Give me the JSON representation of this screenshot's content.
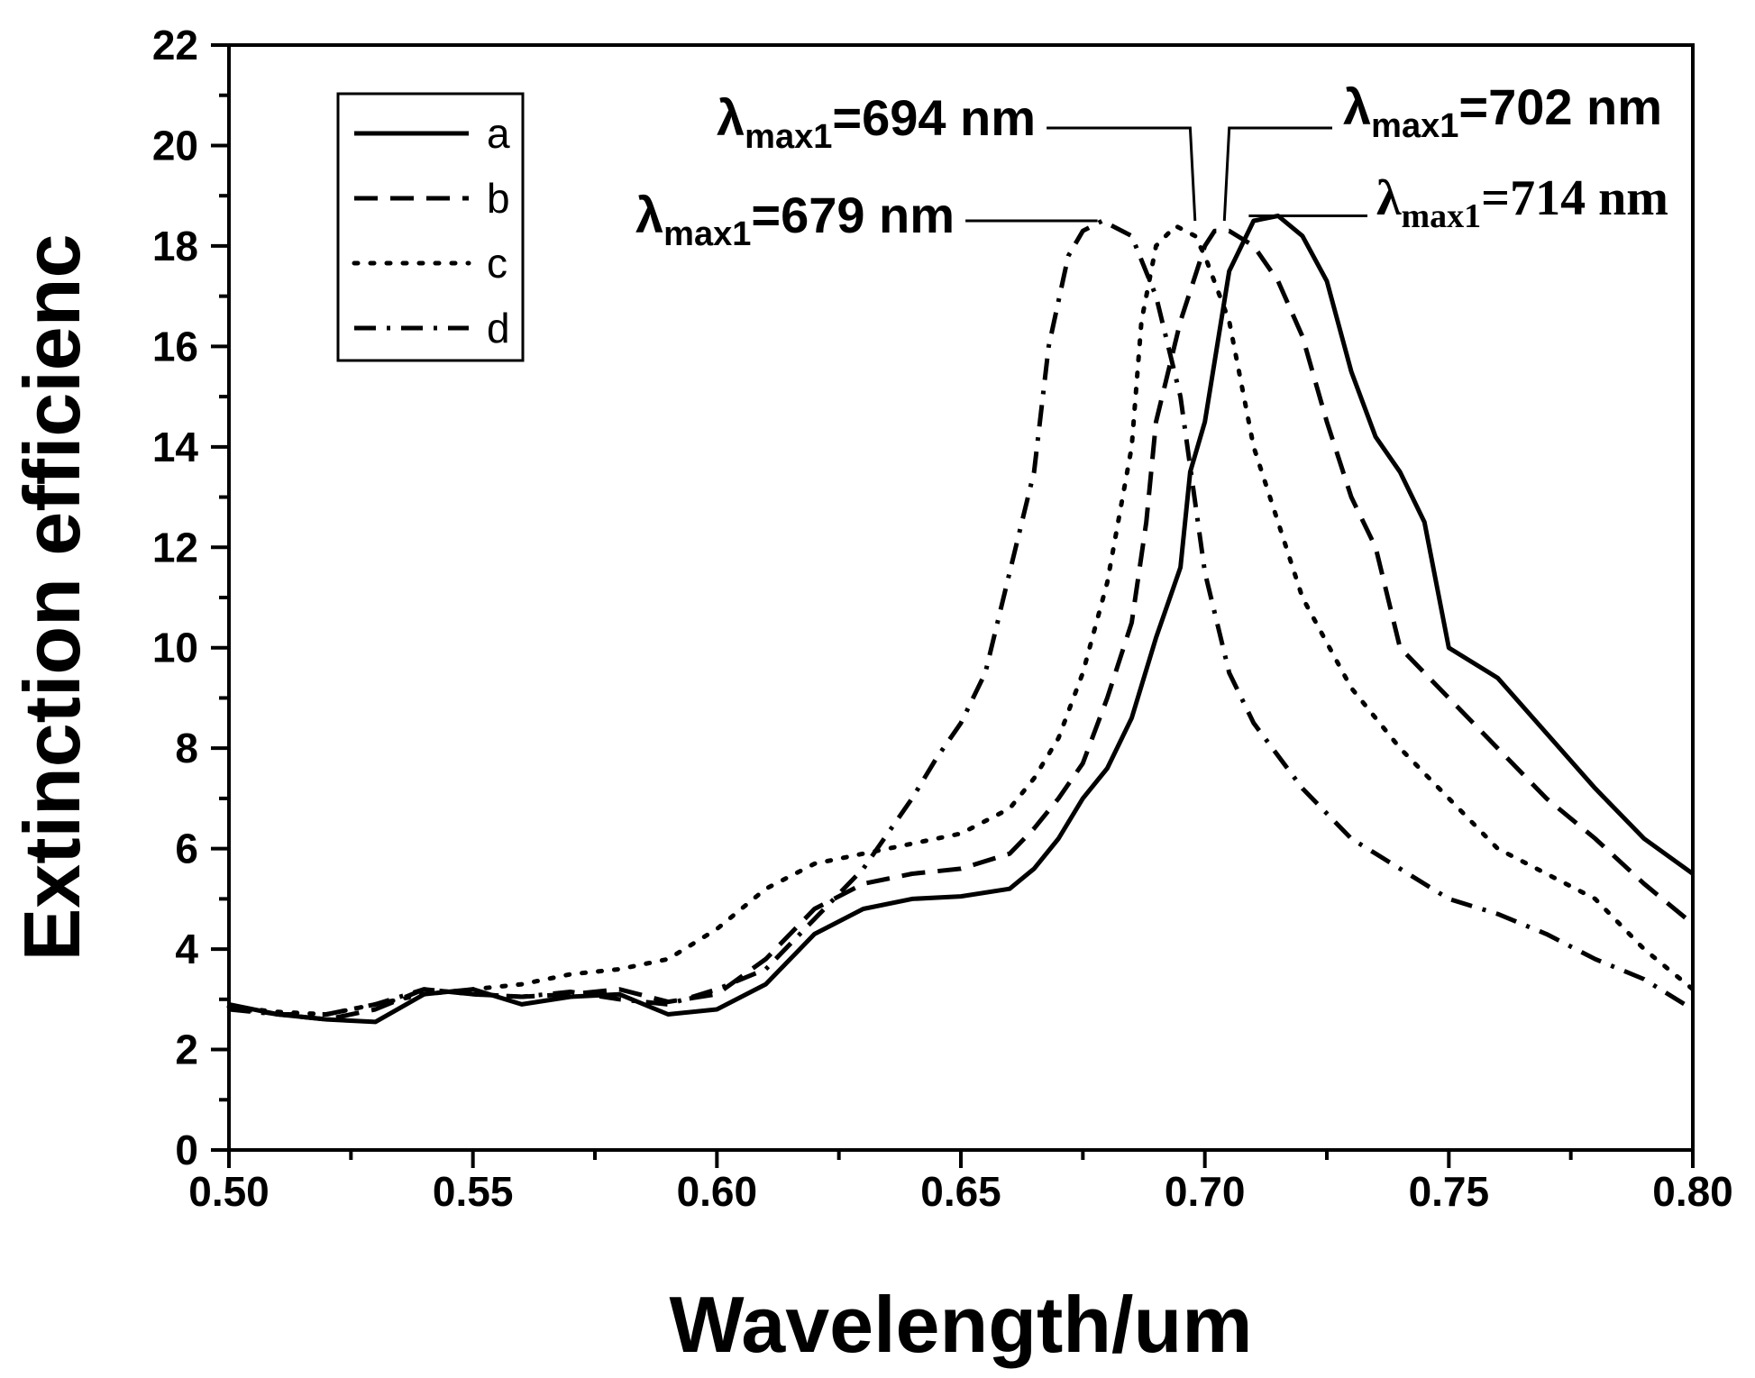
{
  "chart_data": {
    "type": "line",
    "title": "",
    "xlabel": "Wavelength/um",
    "ylabel": "Extinction efficienc",
    "xlim": [
      0.5,
      0.8
    ],
    "ylim": [
      0,
      22
    ],
    "xticks": [
      "0.50",
      "0.55",
      "0.60",
      "0.65",
      "0.70",
      "0.75",
      "0.80"
    ],
    "yticks": [
      "0",
      "2",
      "4",
      "6",
      "8",
      "10",
      "12",
      "14",
      "16",
      "18",
      "20",
      "22"
    ],
    "grid": false,
    "legend_position": "top-left",
    "series": [
      {
        "name": "a",
        "style": "solid",
        "points": [
          [
            0.5,
            2.9
          ],
          [
            0.51,
            2.7
          ],
          [
            0.52,
            2.6
          ],
          [
            0.53,
            2.55
          ],
          [
            0.54,
            3.1
          ],
          [
            0.55,
            3.2
          ],
          [
            0.56,
            2.9
          ],
          [
            0.57,
            3.05
          ],
          [
            0.58,
            3.1
          ],
          [
            0.59,
            2.7
          ],
          [
            0.6,
            2.8
          ],
          [
            0.61,
            3.3
          ],
          [
            0.62,
            4.3
          ],
          [
            0.63,
            4.8
          ],
          [
            0.64,
            5.0
          ],
          [
            0.65,
            5.05
          ],
          [
            0.66,
            5.2
          ],
          [
            0.665,
            5.6
          ],
          [
            0.67,
            6.2
          ],
          [
            0.675,
            7.0
          ],
          [
            0.68,
            7.6
          ],
          [
            0.685,
            8.6
          ],
          [
            0.69,
            10.2
          ],
          [
            0.695,
            11.6
          ],
          [
            0.697,
            13.5
          ],
          [
            0.7,
            14.5
          ],
          [
            0.705,
            17.5
          ],
          [
            0.71,
            18.5
          ],
          [
            0.715,
            18.6
          ],
          [
            0.72,
            18.2
          ],
          [
            0.725,
            17.3
          ],
          [
            0.73,
            15.5
          ],
          [
            0.735,
            14.2
          ],
          [
            0.74,
            13.5
          ],
          [
            0.745,
            12.5
          ],
          [
            0.75,
            10.0
          ],
          [
            0.76,
            9.4
          ],
          [
            0.77,
            8.3
          ],
          [
            0.78,
            7.2
          ],
          [
            0.79,
            6.2
          ],
          [
            0.8,
            5.5
          ]
        ]
      },
      {
        "name": "b",
        "style": "dashed",
        "points": [
          [
            0.5,
            2.85
          ],
          [
            0.51,
            2.7
          ],
          [
            0.52,
            2.6
          ],
          [
            0.53,
            2.8
          ],
          [
            0.54,
            3.2
          ],
          [
            0.55,
            3.1
          ],
          [
            0.56,
            3.05
          ],
          [
            0.57,
            3.1
          ],
          [
            0.58,
            3.2
          ],
          [
            0.59,
            2.95
          ],
          [
            0.6,
            3.1
          ],
          [
            0.61,
            3.8
          ],
          [
            0.62,
            4.8
          ],
          [
            0.63,
            5.3
          ],
          [
            0.64,
            5.5
          ],
          [
            0.65,
            5.6
          ],
          [
            0.66,
            5.9
          ],
          [
            0.665,
            6.4
          ],
          [
            0.67,
            7.0
          ],
          [
            0.675,
            7.7
          ],
          [
            0.68,
            9.0
          ],
          [
            0.685,
            10.5
          ],
          [
            0.688,
            12.5
          ],
          [
            0.69,
            14.5
          ],
          [
            0.695,
            16.5
          ],
          [
            0.7,
            18.0
          ],
          [
            0.702,
            18.3
          ],
          [
            0.705,
            18.3
          ],
          [
            0.71,
            18.0
          ],
          [
            0.715,
            17.3
          ],
          [
            0.72,
            16.2
          ],
          [
            0.725,
            14.5
          ],
          [
            0.73,
            13.0
          ],
          [
            0.735,
            12.0
          ],
          [
            0.74,
            10.0
          ],
          [
            0.75,
            9.0
          ],
          [
            0.76,
            8.0
          ],
          [
            0.77,
            7.0
          ],
          [
            0.78,
            6.2
          ],
          [
            0.79,
            5.3
          ],
          [
            0.8,
            4.5
          ]
        ]
      },
      {
        "name": "c",
        "style": "dotted",
        "points": [
          [
            0.5,
            2.85
          ],
          [
            0.51,
            2.75
          ],
          [
            0.52,
            2.7
          ],
          [
            0.53,
            2.9
          ],
          [
            0.54,
            3.1
          ],
          [
            0.55,
            3.2
          ],
          [
            0.56,
            3.3
          ],
          [
            0.57,
            3.5
          ],
          [
            0.58,
            3.6
          ],
          [
            0.59,
            3.8
          ],
          [
            0.6,
            4.4
          ],
          [
            0.61,
            5.2
          ],
          [
            0.62,
            5.7
          ],
          [
            0.63,
            5.9
          ],
          [
            0.64,
            6.1
          ],
          [
            0.65,
            6.3
          ],
          [
            0.66,
            6.8
          ],
          [
            0.665,
            7.4
          ],
          [
            0.67,
            8.2
          ],
          [
            0.675,
            9.5
          ],
          [
            0.68,
            11.3
          ],
          [
            0.685,
            14.0
          ],
          [
            0.687,
            16.5
          ],
          [
            0.69,
            18.0
          ],
          [
            0.694,
            18.4
          ],
          [
            0.698,
            18.2
          ],
          [
            0.7,
            17.8
          ],
          [
            0.705,
            16.5
          ],
          [
            0.71,
            14.0
          ],
          [
            0.715,
            12.5
          ],
          [
            0.72,
            11.0
          ],
          [
            0.73,
            9.2
          ],
          [
            0.74,
            8.0
          ],
          [
            0.75,
            7.0
          ],
          [
            0.76,
            6.0
          ],
          [
            0.77,
            5.5
          ],
          [
            0.78,
            5.0
          ],
          [
            0.79,
            4.0
          ],
          [
            0.8,
            3.2
          ]
        ]
      },
      {
        "name": "d",
        "style": "dashdot",
        "points": [
          [
            0.5,
            2.8
          ],
          [
            0.51,
            2.7
          ],
          [
            0.52,
            2.7
          ],
          [
            0.53,
            2.9
          ],
          [
            0.54,
            3.2
          ],
          [
            0.55,
            3.1
          ],
          [
            0.56,
            3.05
          ],
          [
            0.57,
            3.15
          ],
          [
            0.58,
            3.0
          ],
          [
            0.59,
            2.9
          ],
          [
            0.6,
            3.2
          ],
          [
            0.61,
            3.6
          ],
          [
            0.62,
            4.6
          ],
          [
            0.63,
            5.6
          ],
          [
            0.64,
            7.0
          ],
          [
            0.645,
            7.8
          ],
          [
            0.65,
            8.5
          ],
          [
            0.655,
            9.5
          ],
          [
            0.66,
            11.5
          ],
          [
            0.665,
            13.5
          ],
          [
            0.668,
            16.0
          ],
          [
            0.672,
            17.8
          ],
          [
            0.675,
            18.3
          ],
          [
            0.679,
            18.5
          ],
          [
            0.685,
            18.2
          ],
          [
            0.69,
            17.0
          ],
          [
            0.695,
            15.0
          ],
          [
            0.7,
            11.5
          ],
          [
            0.705,
            9.5
          ],
          [
            0.71,
            8.5
          ],
          [
            0.72,
            7.2
          ],
          [
            0.73,
            6.2
          ],
          [
            0.74,
            5.6
          ],
          [
            0.75,
            5.0
          ],
          [
            0.76,
            4.7
          ],
          [
            0.77,
            4.3
          ],
          [
            0.78,
            3.8
          ],
          [
            0.79,
            3.4
          ],
          [
            0.8,
            2.8
          ]
        ]
      }
    ],
    "annotations": [
      {
        "name": "annotation-694",
        "prefix": "λ",
        "sub": "max1",
        "text": "=694 nm"
      },
      {
        "name": "annotation-702",
        "prefix": "λ",
        "sub": "max1",
        "text": "=702 nm"
      },
      {
        "name": "annotation-679",
        "prefix": "λ",
        "sub": "max1",
        "text": "=679 nm"
      },
      {
        "name": "annotation-714",
        "prefix": "λ",
        "sub": "max1",
        "text": "=714 nm"
      }
    ],
    "leader_points": {
      "annotation-694": [
        [
          0.697,
          20.35
        ],
        [
          0.698,
          18.5
        ]
      ],
      "annotation-702": [
        [
          0.705,
          20.35
        ],
        [
          0.704,
          18.5
        ]
      ],
      "annotation-679": [
        [
          0.675,
          18.5
        ],
        [
          0.678,
          18.5
        ]
      ],
      "annotation-714": [
        [
          0.712,
          18.6
        ],
        [
          0.709,
          18.6
        ]
      ]
    }
  }
}
